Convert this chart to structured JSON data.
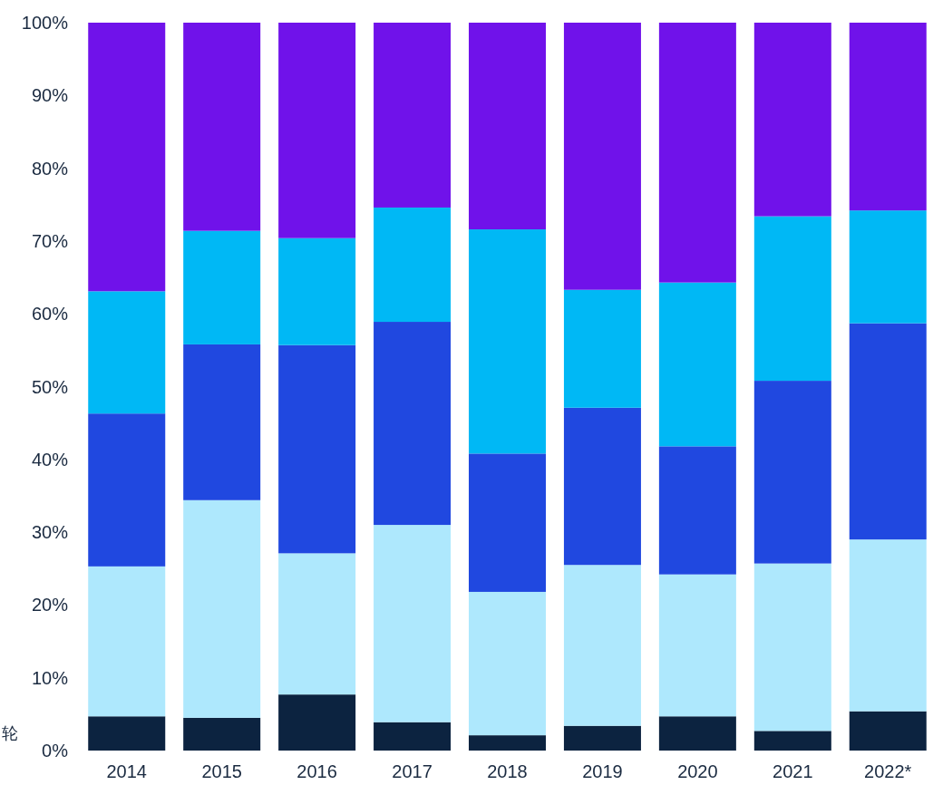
{
  "chart_data": {
    "type": "bar",
    "stacked": true,
    "categories": [
      "2014",
      "2015",
      "2016",
      "2017",
      "2018",
      "2019",
      "2020",
      "2021",
      "2022*"
    ],
    "series": [
      {
        "color": "#0c2340",
        "values": [
          4.7,
          4.5,
          7.7,
          3.9,
          2.1,
          3.4,
          4.7,
          2.7,
          5.4
        ]
      },
      {
        "color": "#aee8fd",
        "values": [
          20.6,
          29.9,
          19.4,
          27.1,
          19.7,
          22.1,
          19.5,
          23.0,
          23.6
        ]
      },
      {
        "color": "#2048e0",
        "values": [
          21.0,
          21.4,
          28.6,
          27.9,
          19.0,
          21.6,
          17.6,
          25.1,
          29.7
        ]
      },
      {
        "color": "#00b8f5",
        "values": [
          16.8,
          15.6,
          14.7,
          15.7,
          30.8,
          16.2,
          22.5,
          22.6,
          15.5
        ]
      },
      {
        "color": "#7012ea",
        "values": [
          36.9,
          28.6,
          29.6,
          25.4,
          28.4,
          36.7,
          35.7,
          26.6,
          25.8
        ]
      }
    ],
    "ylim": [
      0,
      100
    ],
    "yticks": [
      {
        "value": 0,
        "label": "0%"
      },
      {
        "value": 10,
        "label": "10%"
      },
      {
        "value": 20,
        "label": "20%"
      },
      {
        "value": 30,
        "label": "30%"
      },
      {
        "value": 40,
        "label": "40%"
      },
      {
        "value": 50,
        "label": "50%"
      },
      {
        "value": 60,
        "label": "60%"
      },
      {
        "value": 70,
        "label": "70%"
      },
      {
        "value": 80,
        "label": "80%"
      },
      {
        "value": 90,
        "label": "90%"
      },
      {
        "value": 100,
        "label": "100%"
      }
    ],
    "annotations": [
      "轮"
    ]
  }
}
